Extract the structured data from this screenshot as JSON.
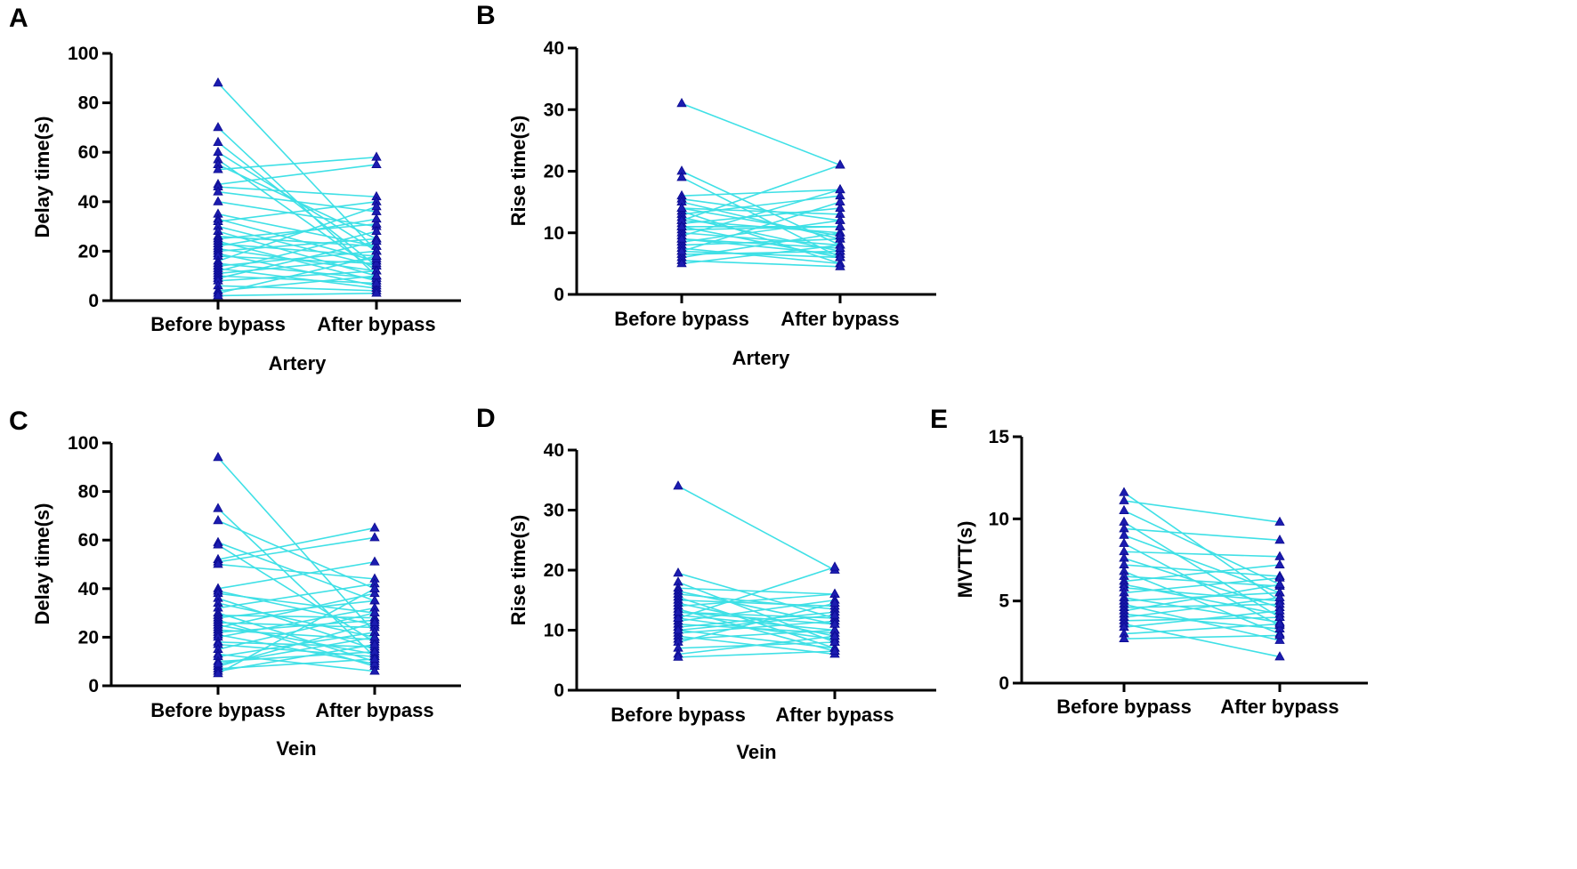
{
  "colors": {
    "line": "#3fe0e6",
    "marker": "#1c1cb0",
    "axis": "#000000"
  },
  "chart_data": [
    {
      "id": "A",
      "type": "line",
      "title": "",
      "xlabel": "Artery",
      "ylabel": "Delay time(s)",
      "categories": [
        "Before bypass",
        "After bypass"
      ],
      "ylim": [
        0,
        100
      ],
      "yticks": [
        0,
        20,
        40,
        60,
        80,
        100
      ],
      "pairs": [
        [
          88,
          20
        ],
        [
          70,
          10
        ],
        [
          64,
          14
        ],
        [
          60,
          20
        ],
        [
          57,
          12
        ],
        [
          55,
          25
        ],
        [
          53,
          58
        ],
        [
          47,
          55
        ],
        [
          46,
          42
        ],
        [
          44,
          36
        ],
        [
          40,
          30
        ],
        [
          35,
          22
        ],
        [
          33,
          16
        ],
        [
          32,
          40
        ],
        [
          30,
          14
        ],
        [
          28,
          10
        ],
        [
          26,
          22
        ],
        [
          25,
          31
        ],
        [
          24,
          8
        ],
        [
          23,
          18
        ],
        [
          22,
          33
        ],
        [
          21,
          12
        ],
        [
          20,
          25
        ],
        [
          19,
          6
        ],
        [
          18,
          15
        ],
        [
          16,
          38
        ],
        [
          15,
          9
        ],
        [
          14,
          20
        ],
        [
          13,
          5
        ],
        [
          12,
          28
        ],
        [
          11,
          17
        ],
        [
          10,
          7
        ],
        [
          9,
          24
        ],
        [
          8,
          12
        ],
        [
          6,
          4
        ],
        [
          4,
          10
        ],
        [
          3,
          18
        ],
        [
          2,
          3
        ]
      ]
    },
    {
      "id": "B",
      "type": "line",
      "title": "",
      "xlabel": "Artery",
      "ylabel": "Rise time(s)",
      "categories": [
        "Before bypass",
        "After bypass"
      ],
      "ylim": [
        0,
        40
      ],
      "yticks": [
        0,
        10,
        20,
        30,
        40
      ],
      "pairs": [
        [
          31,
          21
        ],
        [
          20,
          8
        ],
        [
          19,
          6
        ],
        [
          16,
          17
        ],
        [
          15.5,
          12
        ],
        [
          15,
          9
        ],
        [
          14,
          13
        ],
        [
          13.5,
          5
        ],
        [
          13,
          16
        ],
        [
          12.5,
          7
        ],
        [
          12,
          10
        ],
        [
          11.5,
          14
        ],
        [
          11,
          6
        ],
        [
          10.5,
          11
        ],
        [
          10,
          8
        ],
        [
          9.5,
          17
        ],
        [
          9,
          6.5
        ],
        [
          8.5,
          12
        ],
        [
          8,
          9
        ],
        [
          7.5,
          5
        ],
        [
          7,
          15
        ],
        [
          6.5,
          7
        ],
        [
          6,
          10
        ],
        [
          5.5,
          4.5
        ],
        [
          5,
          8
        ],
        [
          12,
          21
        ],
        [
          9,
          7.5
        ],
        [
          7,
          6
        ],
        [
          11,
          11
        ],
        [
          14,
          9.5
        ]
      ]
    },
    {
      "id": "C",
      "type": "line",
      "title": "",
      "xlabel": "Vein",
      "ylabel": "Delay time(s)",
      "categories": [
        "Before bypass",
        "After bypass"
      ],
      "ylim": [
        0,
        100
      ],
      "yticks": [
        0,
        20,
        40,
        60,
        80,
        100
      ],
      "pairs": [
        [
          94,
          22
        ],
        [
          73,
          12
        ],
        [
          68,
          40
        ],
        [
          59,
          35
        ],
        [
          58,
          18
        ],
        [
          52,
          65
        ],
        [
          51,
          61
        ],
        [
          50,
          44
        ],
        [
          40,
          51
        ],
        [
          39,
          25
        ],
        [
          38,
          30
        ],
        [
          36,
          15
        ],
        [
          34,
          20
        ],
        [
          32,
          42
        ],
        [
          30,
          10
        ],
        [
          29,
          28
        ],
        [
          28,
          35
        ],
        [
          27,
          8
        ],
        [
          26,
          24
        ],
        [
          25,
          13
        ],
        [
          24,
          38
        ],
        [
          23,
          19
        ],
        [
          22,
          27
        ],
        [
          21,
          9
        ],
        [
          20,
          32
        ],
        [
          18,
          16
        ],
        [
          17,
          12
        ],
        [
          15,
          30
        ],
        [
          13,
          6
        ],
        [
          12,
          22
        ],
        [
          10,
          14
        ],
        [
          8,
          26
        ],
        [
          7,
          11
        ],
        [
          6,
          17
        ],
        [
          5,
          40
        ],
        [
          9,
          20
        ]
      ]
    },
    {
      "id": "D",
      "type": "line",
      "title": "",
      "xlabel": "Vein",
      "ylabel": "Rise time(s)",
      "categories": [
        "Before bypass",
        "After bypass"
      ],
      "ylim": [
        0,
        40
      ],
      "yticks": [
        0,
        10,
        20,
        30,
        40
      ],
      "pairs": [
        [
          34,
          20
        ],
        [
          19.5,
          12
        ],
        [
          18,
          8
        ],
        [
          17,
          16
        ],
        [
          16.5,
          11
        ],
        [
          16,
          13.5
        ],
        [
          15.5,
          7
        ],
        [
          15,
          14
        ],
        [
          14.5,
          9
        ],
        [
          14,
          16
        ],
        [
          13.5,
          6.5
        ],
        [
          13,
          12
        ],
        [
          12.5,
          10
        ],
        [
          12,
          8.5
        ],
        [
          11.5,
          15
        ],
        [
          11,
          9.5
        ],
        [
          10.5,
          13
        ],
        [
          10,
          7
        ],
        [
          9.5,
          11.5
        ],
        [
          9,
          6
        ],
        [
          8.5,
          10
        ],
        [
          8,
          14.5
        ],
        [
          7,
          8
        ],
        [
          6,
          9
        ],
        [
          5.5,
          6.5
        ],
        [
          12,
          20.5
        ],
        [
          10,
          12.5
        ],
        [
          13,
          11
        ]
      ]
    },
    {
      "id": "E",
      "type": "line",
      "title": "",
      "xlabel": "",
      "ylabel": "MVTT(s)",
      "categories": [
        "Before bypass",
        "After bypass"
      ],
      "ylim": [
        0,
        15
      ],
      "yticks": [
        0,
        5,
        10,
        15
      ],
      "pairs": [
        [
          11.6,
          5
        ],
        [
          11.1,
          9.8
        ],
        [
          10.5,
          6
        ],
        [
          9.8,
          4
        ],
        [
          9.4,
          8.7
        ],
        [
          9,
          5.5
        ],
        [
          8.5,
          3.5
        ],
        [
          8,
          7.7
        ],
        [
          7.6,
          4.6
        ],
        [
          7.2,
          6.5
        ],
        [
          6.8,
          3
        ],
        [
          6.5,
          5.9
        ],
        [
          6.2,
          7.2
        ],
        [
          6,
          4.2
        ],
        [
          5.8,
          5
        ],
        [
          5.5,
          6.4
        ],
        [
          5.2,
          3.7
        ],
        [
          5,
          5.5
        ],
        [
          4.8,
          2.6
        ],
        [
          4.6,
          4.8
        ],
        [
          4.4,
          6
        ],
        [
          4.2,
          3.3
        ],
        [
          4,
          5.2
        ],
        [
          3.8,
          4
        ],
        [
          3.6,
          1.6
        ],
        [
          3.4,
          4.4
        ],
        [
          3,
          3.6
        ],
        [
          2.7,
          2.9
        ]
      ]
    }
  ]
}
